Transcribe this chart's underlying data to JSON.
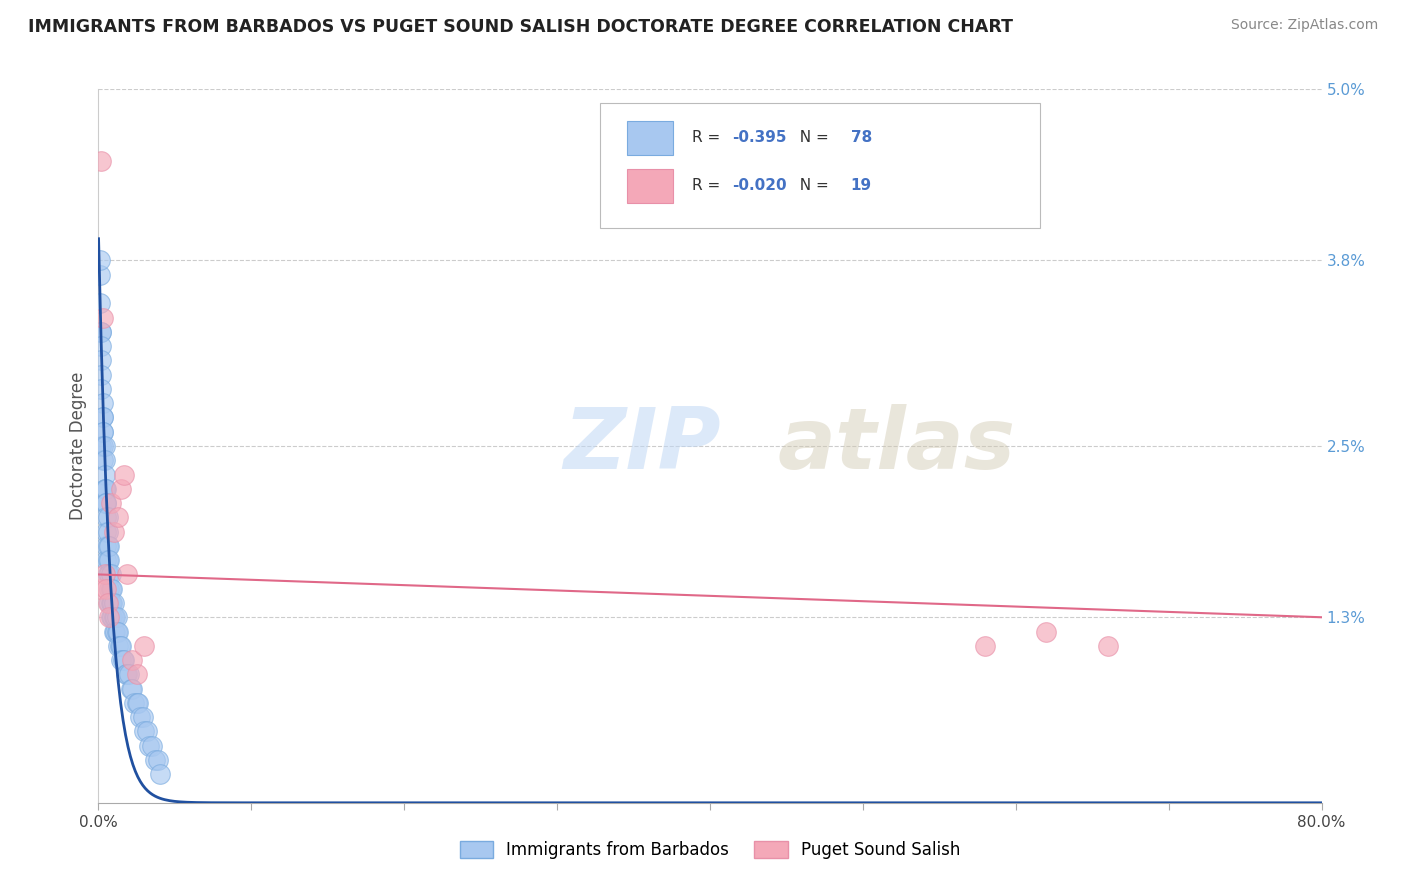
{
  "title": "IMMIGRANTS FROM BARBADOS VS PUGET SOUND SALISH DOCTORATE DEGREE CORRELATION CHART",
  "source": "Source: ZipAtlas.com",
  "ylabel": "Doctorate Degree",
  "xlim": [
    0.0,
    0.8
  ],
  "ylim": [
    0.0,
    0.05
  ],
  "xtick_vals": [
    0.0,
    0.1,
    0.2,
    0.3,
    0.4,
    0.5,
    0.6,
    0.7,
    0.8
  ],
  "xticklabels": [
    "0.0%",
    "",
    "",
    "",
    "",
    "",
    "",
    "",
    "80.0%"
  ],
  "ytick_vals": [
    0.0,
    0.013,
    0.025,
    0.038,
    0.05
  ],
  "yticklabels": [
    "",
    "1.3%",
    "2.5%",
    "3.8%",
    "5.0%"
  ],
  "blue_r": -0.395,
  "blue_n": 78,
  "pink_r": -0.02,
  "pink_n": 19,
  "blue_color": "#A8C8F0",
  "pink_color": "#F4A8B8",
  "blue_edge_color": "#7AABDF",
  "pink_edge_color": "#E890A8",
  "blue_line_color": "#2050A0",
  "pink_line_color": "#E06888",
  "legend_label_blue": "Immigrants from Barbados",
  "legend_label_pink": "Puget Sound Salish",
  "watermark": "ZIPatlas",
  "blue_x": [
    0.001,
    0.001,
    0.001,
    0.002,
    0.002,
    0.002,
    0.002,
    0.002,
    0.002,
    0.002,
    0.003,
    0.003,
    0.003,
    0.003,
    0.003,
    0.003,
    0.003,
    0.004,
    0.004,
    0.004,
    0.004,
    0.004,
    0.004,
    0.005,
    0.005,
    0.005,
    0.005,
    0.005,
    0.005,
    0.005,
    0.006,
    0.006,
    0.006,
    0.006,
    0.006,
    0.007,
    0.007,
    0.007,
    0.007,
    0.007,
    0.008,
    0.008,
    0.008,
    0.008,
    0.009,
    0.009,
    0.009,
    0.01,
    0.01,
    0.01,
    0.011,
    0.011,
    0.012,
    0.012,
    0.013,
    0.013,
    0.014,
    0.015,
    0.015,
    0.016,
    0.017,
    0.018,
    0.019,
    0.02,
    0.021,
    0.022,
    0.023,
    0.025,
    0.026,
    0.027,
    0.029,
    0.03,
    0.032,
    0.033,
    0.035,
    0.037,
    0.039,
    0.04
  ],
  "blue_y": [
    0.035,
    0.037,
    0.038,
    0.033,
    0.033,
    0.032,
    0.031,
    0.03,
    0.029,
    0.025,
    0.028,
    0.027,
    0.027,
    0.026,
    0.026,
    0.025,
    0.024,
    0.025,
    0.024,
    0.023,
    0.022,
    0.022,
    0.021,
    0.022,
    0.021,
    0.021,
    0.02,
    0.019,
    0.018,
    0.017,
    0.02,
    0.019,
    0.018,
    0.017,
    0.016,
    0.018,
    0.017,
    0.016,
    0.015,
    0.014,
    0.016,
    0.015,
    0.014,
    0.013,
    0.015,
    0.014,
    0.013,
    0.014,
    0.013,
    0.012,
    0.013,
    0.012,
    0.013,
    0.012,
    0.012,
    0.011,
    0.011,
    0.011,
    0.01,
    0.01,
    0.01,
    0.009,
    0.009,
    0.009,
    0.008,
    0.008,
    0.007,
    0.007,
    0.007,
    0.006,
    0.006,
    0.005,
    0.005,
    0.004,
    0.004,
    0.003,
    0.003,
    0.002
  ],
  "pink_x": [
    0.001,
    0.002,
    0.003,
    0.004,
    0.005,
    0.006,
    0.007,
    0.008,
    0.01,
    0.013,
    0.015,
    0.017,
    0.019,
    0.022,
    0.025,
    0.03,
    0.58,
    0.62,
    0.66
  ],
  "pink_y": [
    0.015,
    0.045,
    0.034,
    0.016,
    0.015,
    0.014,
    0.013,
    0.021,
    0.019,
    0.02,
    0.022,
    0.023,
    0.016,
    0.01,
    0.009,
    0.011,
    0.011,
    0.012,
    0.011
  ],
  "blue_curve_start_y": 0.04,
  "blue_curve_decay": 120.0,
  "pink_line_start": 0.016,
  "pink_line_end": 0.013
}
